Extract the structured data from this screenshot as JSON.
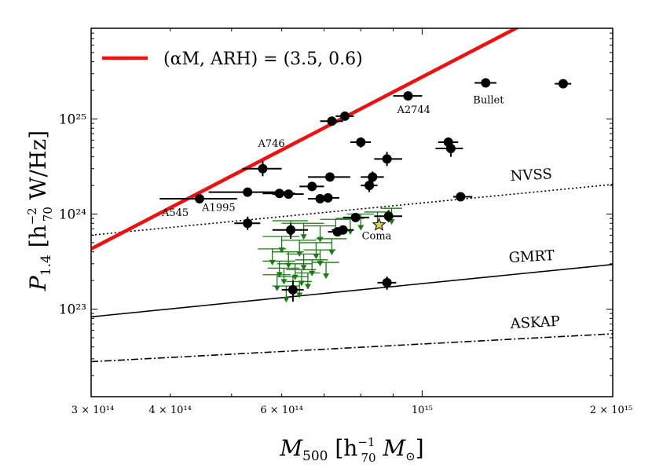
{
  "chart_data": {
    "type": "scatter",
    "xscale": "log",
    "yscale": "log",
    "xlim": [
      300000000000000.0,
      2000000000000000.0
    ],
    "ylim": [
      1.2e+22,
      9e+25
    ],
    "x_tick_labels": [
      "3 × 10¹⁴",
      "4 × 10¹⁴",
      "6 × 10¹⁴",
      "10¹⁵",
      "2 × 10¹⁵"
    ],
    "y_tick_labels": [
      "10²³",
      "10²⁴",
      "10²⁵"
    ],
    "xlabel": {
      "main": "M",
      "sub": "500",
      "rest": " [h",
      "unit_sup": "−1",
      "unit_sub": "70",
      "tail": " M",
      "tail_sub": "⊙",
      "close": "]"
    },
    "ylabel": {
      "main": "P",
      "sub": "1.4",
      "rest": " [h",
      "unit_sup": "−2",
      "unit_sub": "70",
      "tail": " W/Hz]"
    },
    "legend": {
      "label": "(αM, ARH) = (3.5, 0.6)",
      "color": "#ee1111",
      "placement": "top-left"
    },
    "model_line": {
      "name": "(αM, ARH) = (3.5, 0.6)",
      "color": "#ee1111",
      "points": [
        [
          300000000000000.0,
          4.3e+23
        ],
        [
          1450000000000000.0,
          1e+26
        ]
      ]
    },
    "sensitivity_lines": [
      {
        "label": "NVSS",
        "style": "dotted",
        "points": [
          [
            300000000000000.0,
            6e+23
          ],
          [
            2000000000000000.0,
            2.05e+24
          ]
        ]
      },
      {
        "label": "GMRT",
        "style": "solid",
        "points": [
          [
            300000000000000.0,
            8.3e+22
          ],
          [
            2000000000000000.0,
            2.95e+23
          ]
        ]
      },
      {
        "label": "ASKAP",
        "style": "dashdot",
        "points": [
          [
            300000000000000.0,
            2.8e+22
          ],
          [
            2000000000000000.0,
            5.5e+22
          ]
        ]
      }
    ],
    "detections": [
      {
        "x": 445000000000000.0,
        "y": 1.45e+24,
        "xerr": [
          385000000000000.0,
          510000000000000.0
        ],
        "yerr": [
          1.3e+24,
          1.6e+24
        ],
        "label": "A545"
      },
      {
        "x": 530000000000000.0,
        "y": 1.7e+24,
        "xerr": [
          460000000000000.0,
          610000000000000.0
        ]
      },
      {
        "x": 530000000000000.0,
        "y": 8e+23,
        "xerr": [
          505000000000000.0,
          555000000000000.0
        ],
        "yerr": [
          6.8e+23,
          9.4e+23
        ],
        "label": "A1995"
      },
      {
        "x": 560000000000000.0,
        "y": 3e+24,
        "xerr": [
          520000000000000.0,
          600000000000000.0
        ],
        "yerr": [
          2.5e+24,
          3.6e+24
        ],
        "label": "A746"
      },
      {
        "x": 595000000000000.0,
        "y": 1.65e+24,
        "xerr": [
          560000000000000.0,
          630000000000000.0
        ]
      },
      {
        "x": 615000000000000.0,
        "y": 1.62e+24,
        "xerr": [
          580000000000000.0,
          650000000000000.0
        ]
      },
      {
        "x": 620000000000000.0,
        "y": 6.8e+23,
        "xerr": [
          580000000000000.0,
          660000000000000.0
        ],
        "yerr": [
          5.5e+23,
          8e+23
        ]
      },
      {
        "x": 625000000000000.0,
        "y": 1.6e+23,
        "xerr": [
          600000000000000.0,
          650000000000000.0
        ],
        "yerr": [
          1.2e+23,
          2e+23
        ]
      },
      {
        "x": 670000000000000.0,
        "y": 1.95e+24,
        "xerr": [
          640000000000000.0,
          700000000000000.0
        ]
      },
      {
        "x": 690000000000000.0,
        "y": 1.45e+24,
        "xerr": [
          660000000000000.0,
          720000000000000.0
        ]
      },
      {
        "x": 715000000000000.0,
        "y": 2.45e+24,
        "xerr": [
          660000000000000.0,
          770000000000000.0
        ]
      },
      {
        "x": 710000000000000.0,
        "y": 1.48e+24,
        "xerr": [
          685000000000000.0,
          740000000000000.0
        ]
      },
      {
        "x": 720000000000000.0,
        "y": 9.5e+24,
        "xerr": [
          690000000000000.0,
          750000000000000.0
        ],
        "yerr": [
          8.5e+24,
          1.05e+25
        ]
      },
      {
        "x": 755000000000000.0,
        "y": 1.07e+25,
        "xerr": [
          730000000000000.0,
          780000000000000.0
        ],
        "yerr": [
          9.8e+24,
          1.16e+25
        ]
      },
      {
        "x": 735000000000000.0,
        "y": 6.5e+23,
        "xerr": [
          710000000000000.0,
          760000000000000.0
        ]
      },
      {
        "x": 750000000000000.0,
        "y": 6.8e+23,
        "xerr": [
          720000000000000.0,
          780000000000000.0
        ]
      },
      {
        "x": 785000000000000.0,
        "y": 9.2e+23,
        "xerr": [
          750000000000000.0,
          825000000000000.0
        ]
      },
      {
        "x": 800000000000000.0,
        "y": 5.7e+24,
        "xerr": [
          770000000000000.0,
          830000000000000.0
        ],
        "yerr": [
          5e+24,
          6.4e+24
        ]
      },
      {
        "x": 825000000000000.0,
        "y": 2e+24,
        "xerr": [
          800000000000000.0,
          850000000000000.0
        ],
        "yerr": [
          1.7e+24,
          2.3e+24
        ]
      },
      {
        "x": 835000000000000.0,
        "y": 2.45e+24,
        "xerr": [
          800000000000000.0,
          870000000000000.0
        ],
        "yerr": [
          2.1e+24,
          2.8e+24
        ]
      },
      {
        "x": 880000000000000.0,
        "y": 3.8e+24,
        "xerr": [
          840000000000000.0,
          930000000000000.0
        ],
        "yerr": [
          3.2e+24,
          4.5e+24
        ]
      },
      {
        "x": 885000000000000.0,
        "y": 9.5e+23,
        "xerr": [
          840000000000000.0,
          930000000000000.0
        ],
        "yerr": [
          8.2e+23,
          1.1e+24
        ]
      },
      {
        "x": 880000000000000.0,
        "y": 1.9e+23,
        "xerr": [
          850000000000000.0,
          910000000000000.0
        ],
        "yerr": [
          1.6e+23,
          2.2e+23
        ]
      },
      {
        "x": 950000000000000.0,
        "y": 1.75e+25,
        "xerr": [
          900000000000000.0,
          1000000000000000.0
        ],
        "yerr": [
          1.6e+25,
          1.9e+25
        ],
        "label": "A2744"
      },
      {
        "x": 1100000000000000.0,
        "y": 5.7e+24,
        "xerr": [
          1060000000000000.0,
          1140000000000000.0
        ],
        "yerr": [
          5.2e+24,
          6.2e+24
        ]
      },
      {
        "x": 1110000000000000.0,
        "y": 4.9e+24,
        "xerr": [
          1050000000000000.0,
          1160000000000000.0
        ],
        "yerr": [
          4e+24,
          6e+24
        ]
      },
      {
        "x": 1150000000000000.0,
        "y": 1.52e+24,
        "xerr": [
          1120000000000000.0,
          1200000000000000.0
        ]
      },
      {
        "x": 1260000000000000.0,
        "y": 2.4e+25,
        "xerr": [
          1210000000000000.0,
          1310000000000000.0
        ],
        "label": "Bullet"
      },
      {
        "x": 1670000000000000.0,
        "y": 2.35e+25,
        "xerr": [
          1620000000000000.0,
          1720000000000000.0
        ]
      }
    ],
    "coma": {
      "x": 855000000000000.0,
      "y": 7.7e+23,
      "label": "Coma",
      "color": "#d9d24a"
    },
    "upper_limits": [
      {
        "x": 620000000000000.0,
        "y": 8.5e+23,
        "xerr": [
          580000000000000.0,
          660000000000000.0
        ]
      },
      {
        "x": 650000000000000.0,
        "y": 8e+23,
        "xerr": [
          600000000000000.0,
          700000000000000.0
        ]
      },
      {
        "x": 690000000000000.0,
        "y": 7.5e+23,
        "xerr": [
          650000000000000.0,
          730000000000000.0
        ]
      },
      {
        "x": 730000000000000.0,
        "y": 8.8e+23,
        "xerr": [
          690000000000000.0,
          770000000000000.0
        ]
      },
      {
        "x": 770000000000000.0,
        "y": 9e+23,
        "xerr": [
          730000000000000.0,
          810000000000000.0
        ]
      },
      {
        "x": 800000000000000.0,
        "y": 1e+24,
        "xerr": [
          760000000000000.0,
          840000000000000.0
        ]
      },
      {
        "x": 850000000000000.0,
        "y": 1.05e+24,
        "xerr": [
          810000000000000.0,
          890000000000000.0
        ]
      },
      {
        "x": 895000000000000.0,
        "y": 1.15e+24,
        "xerr": [
          860000000000000.0,
          930000000000000.0
        ]
      },
      {
        "x": 600000000000000.0,
        "y": 5.8e+23,
        "xerr": [
          560000000000000.0,
          640000000000000.0
        ]
      },
      {
        "x": 640000000000000.0,
        "y": 5.3e+23,
        "xerr": [
          600000000000000.0,
          680000000000000.0
        ]
      },
      {
        "x": 680000000000000.0,
        "y": 5e+23,
        "xerr": [
          640000000000000.0,
          720000000000000.0
        ]
      },
      {
        "x": 720000000000000.0,
        "y": 5.5e+23,
        "xerr": [
          680000000000000.0,
          760000000000000.0
        ]
      },
      {
        "x": 580000000000000.0,
        "y": 4.3e+23,
        "xerr": [
          550000000000000.0,
          610000000000000.0
        ]
      },
      {
        "x": 615000000000000.0,
        "y": 4e+23,
        "xerr": [
          580000000000000.0,
          650000000000000.0
        ]
      },
      {
        "x": 650000000000000.0,
        "y": 3.8e+23,
        "xerr": [
          610000000000000.0,
          690000000000000.0
        ]
      },
      {
        "x": 690000000000000.0,
        "y": 4.2e+23,
        "xerr": [
          650000000000000.0,
          730000000000000.0
        ]
      },
      {
        "x": 595000000000000.0,
        "y": 3.2e+23,
        "xerr": [
          560000000000000.0,
          630000000000000.0
        ]
      },
      {
        "x": 630000000000000.0,
        "y": 3e+23,
        "xerr": [
          590000000000000.0,
          670000000000000.0
        ]
      },
      {
        "x": 670000000000000.0,
        "y": 3.3e+23,
        "xerr": [
          630000000000000.0,
          710000000000000.0
        ]
      },
      {
        "x": 705000000000000.0,
        "y": 3.1e+23,
        "xerr": [
          670000000000000.0,
          740000000000000.0
        ]
      },
      {
        "x": 605000000000000.0,
        "y": 2.7e+23,
        "xerr": [
          570000000000000.0,
          640000000000000.0
        ]
      },
      {
        "x": 645000000000000.0,
        "y": 2.6e+23,
        "xerr": [
          610000000000000.0,
          680000000000000.0
        ]
      },
      {
        "x": 590000000000000.0,
        "y": 2.3e+23,
        "xerr": [
          560000000000000.0,
          620000000000000.0
        ]
      },
      {
        "x": 625000000000000.0,
        "y": 2.2e+23,
        "xerr": [
          590000000000000.0,
          660000000000000.0
        ]
      },
      {
        "x": 660000000000000.0,
        "y": 2.4e+23,
        "xerr": [
          630000000000000.0,
          690000000000000.0
        ]
      },
      {
        "x": 640000000000000.0,
        "y": 1.95e+23,
        "xerr": [
          610000000000000.0,
          670000000000000.0
        ]
      },
      {
        "x": 610000000000000.0,
        "y": 1.75e+23,
        "xerr": [
          580000000000000.0,
          640000000000000.0
        ]
      }
    ]
  },
  "colors": {
    "model": "#ee1111",
    "upper_limit": "#1a7a12",
    "detection": "#000000",
    "coma": "#d9d24a"
  }
}
